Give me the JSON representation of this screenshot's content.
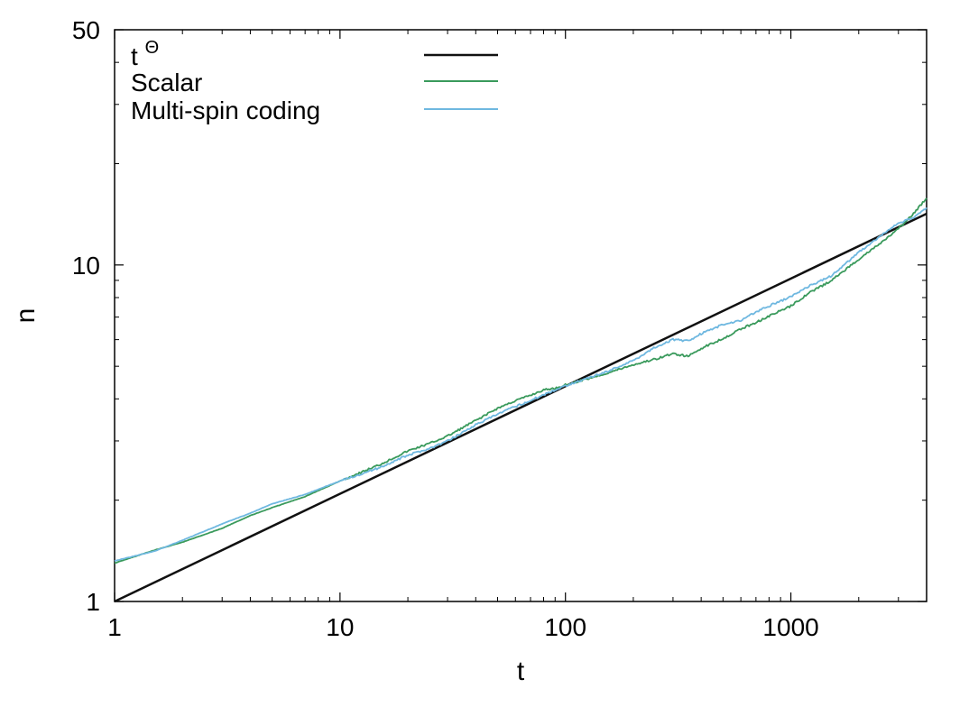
{
  "chart_data": {
    "type": "line",
    "xlabel": "t",
    "ylabel": "n",
    "xscale": "log",
    "yscale": "log",
    "xlim": [
      1,
      4000
    ],
    "ylim": [
      1,
      50
    ],
    "xticks": [
      1,
      10,
      100,
      1000
    ],
    "xtick_labels": [
      "1",
      "10",
      "100",
      "1000"
    ],
    "yticks": [
      1,
      10,
      50
    ],
    "ytick_labels": [
      "1",
      "10",
      "50"
    ],
    "grid": false,
    "legend_position": "top-left",
    "series": [
      {
        "name": "t",
        "name_superscript": "Θ",
        "color": "#111111",
        "x": [
          1,
          4000
        ],
        "y": [
          1,
          14.2
        ]
      },
      {
        "name": "Scalar",
        "color": "#3a9a5c",
        "x": [
          1,
          1.5,
          2,
          3,
          4,
          5,
          7,
          10,
          15,
          20,
          25,
          30,
          40,
          50,
          60,
          70,
          80,
          90,
          100,
          150,
          200,
          250,
          300,
          350,
          400,
          500,
          600,
          700,
          800,
          1000,
          1200,
          1500,
          2000,
          2500,
          3000,
          3500,
          4000
        ],
        "y": [
          1.3,
          1.42,
          1.5,
          1.65,
          1.8,
          1.9,
          2.05,
          2.28,
          2.55,
          2.8,
          2.95,
          3.1,
          3.45,
          3.75,
          3.95,
          4.1,
          4.25,
          4.3,
          4.4,
          4.75,
          5.05,
          5.25,
          5.45,
          5.35,
          5.65,
          6.05,
          6.45,
          6.75,
          7.05,
          7.55,
          8.25,
          8.95,
          10.4,
          11.6,
          12.8,
          14.2,
          15.8
        ]
      },
      {
        "name": "Multi-spin coding",
        "color": "#6fb8e0",
        "x": [
          1,
          1.5,
          2,
          3,
          4,
          5,
          7,
          10,
          15,
          20,
          25,
          30,
          40,
          50,
          60,
          70,
          80,
          90,
          100,
          150,
          200,
          250,
          300,
          350,
          400,
          500,
          600,
          700,
          800,
          1000,
          1200,
          1500,
          2000,
          2500,
          3000,
          3500,
          4000
        ],
        "y": [
          1.32,
          1.41,
          1.52,
          1.7,
          1.83,
          1.95,
          2.08,
          2.28,
          2.5,
          2.72,
          2.85,
          3.0,
          3.35,
          3.6,
          3.8,
          3.95,
          4.12,
          4.25,
          4.38,
          4.8,
          5.2,
          5.7,
          6.0,
          5.95,
          6.25,
          6.65,
          6.85,
          7.25,
          7.55,
          8.05,
          8.65,
          9.25,
          10.9,
          12.2,
          13.3,
          13.8,
          14.8
        ]
      }
    ]
  }
}
